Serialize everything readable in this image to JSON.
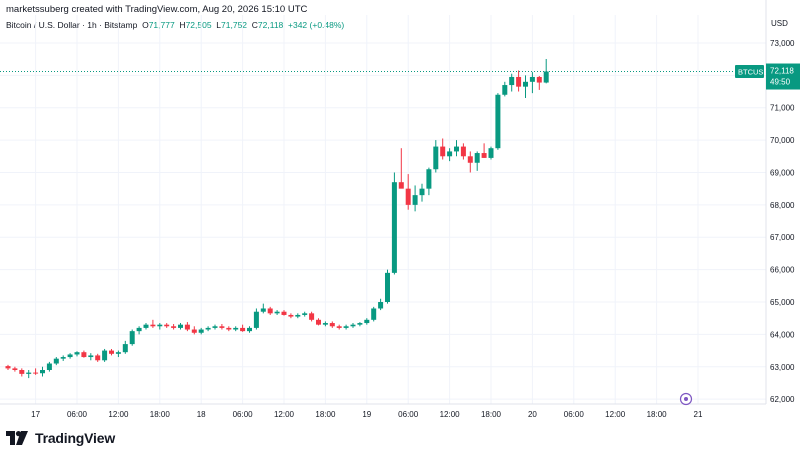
{
  "header": {
    "credit": "marketssuberg created with TradingView.com, Aug 20, 2026 15:10 UTC",
    "symbol_desc": "Bitcoin / U.S. Dollar · 1h · Bitstamp",
    "o_label": "O",
    "o_value": "71,777",
    "h_label": "H",
    "h_value": "72,505",
    "l_label": "L",
    "l_value": "71,752",
    "c_label": "C",
    "c_value": "72,118",
    "change": "+342 (+0.48%)"
  },
  "footer": {
    "brand": "TradingView",
    "logo": "tradingview-logo-icon"
  },
  "colors": {
    "up": "#089981",
    "down": "#f23645",
    "grid": "#f0f3fa",
    "axis_text": "#131722",
    "price_line": "#089981"
  },
  "chart_data": {
    "type": "candlestick",
    "symbol": "BTCUSD",
    "currency_label": "USD",
    "last_price_label": "72,118",
    "countdown_label": "49:50",
    "ylim": [
      61850,
      73400
    ],
    "y_ticks": [
      {
        "value": 73000,
        "label": "73,000"
      },
      {
        "value": 72000,
        "label": "72,000"
      },
      {
        "value": 71000,
        "label": "71,000"
      },
      {
        "value": 70000,
        "label": "70,000"
      },
      {
        "value": 69000,
        "label": "69,000"
      },
      {
        "value": 68000,
        "label": "68,000"
      },
      {
        "value": 67000,
        "label": "67,000"
      },
      {
        "value": 66000,
        "label": "66,000"
      },
      {
        "value": 65000,
        "label": "65,000"
      },
      {
        "value": 64000,
        "label": "64,000"
      },
      {
        "value": 63000,
        "label": "63,000"
      },
      {
        "value": 62000,
        "label": "62,000"
      }
    ],
    "x_ticks": [
      {
        "index": 4,
        "label": "17"
      },
      {
        "index": 10,
        "label": "06:00"
      },
      {
        "index": 16,
        "label": "12:00"
      },
      {
        "index": 22,
        "label": "18:00"
      },
      {
        "index": 28,
        "label": "18"
      },
      {
        "index": 34,
        "label": "06:00"
      },
      {
        "index": 40,
        "label": "12:00"
      },
      {
        "index": 46,
        "label": "18:00"
      },
      {
        "index": 52,
        "label": "19"
      },
      {
        "index": 58,
        "label": "06:00"
      },
      {
        "index": 64,
        "label": "12:00"
      },
      {
        "index": 70,
        "label": "18:00"
      },
      {
        "index": 76,
        "label": "20"
      },
      {
        "index": 82,
        "label": "06:00"
      },
      {
        "index": 88,
        "label": "12:00"
      },
      {
        "index": 94,
        "label": "18:00"
      },
      {
        "index": 100,
        "label": "21"
      }
    ],
    "last_price": 72118,
    "candles": [
      [
        63020,
        63060,
        62900,
        62950
      ],
      [
        62950,
        63000,
        62850,
        62900
      ],
      [
        62900,
        62950,
        62700,
        62780
      ],
      [
        62780,
        62900,
        62650,
        62820
      ],
      [
        62820,
        62950,
        62750,
        62800
      ],
      [
        62800,
        63000,
        62700,
        62900
      ],
      [
        62900,
        63150,
        62850,
        63100
      ],
      [
        63100,
        63300,
        63050,
        63250
      ],
      [
        63250,
        63350,
        63180,
        63300
      ],
      [
        63300,
        63420,
        63250,
        63380
      ],
      [
        63380,
        63480,
        63320,
        63450
      ],
      [
        63450,
        63500,
        63280,
        63300
      ],
      [
        63300,
        63420,
        63200,
        63350
      ],
      [
        63350,
        63400,
        63150,
        63200
      ],
      [
        63200,
        63550,
        63150,
        63500
      ],
      [
        63500,
        63550,
        63350,
        63400
      ],
      [
        63400,
        63500,
        63300,
        63450
      ],
      [
        63450,
        63800,
        63400,
        63700
      ],
      [
        63700,
        64150,
        63650,
        64100
      ],
      [
        64100,
        64250,
        64000,
        64200
      ],
      [
        64200,
        64350,
        64150,
        64300
      ],
      [
        64300,
        64450,
        64200,
        64250
      ],
      [
        64250,
        64350,
        64150,
        64300
      ],
      [
        64300,
        64350,
        64200,
        64250
      ],
      [
        64250,
        64320,
        64150,
        64200
      ],
      [
        64200,
        64350,
        64150,
        64300
      ],
      [
        64300,
        64380,
        64100,
        64150
      ],
      [
        64150,
        64250,
        64000,
        64050
      ],
      [
        64050,
        64200,
        64000,
        64150
      ],
      [
        64150,
        64250,
        64100,
        64200
      ],
      [
        64200,
        64300,
        64150,
        64250
      ],
      [
        64250,
        64320,
        64150,
        64200
      ],
      [
        64200,
        64250,
        64100,
        64150
      ],
      [
        64150,
        64250,
        64100,
        64200
      ],
      [
        64200,
        64300,
        64080,
        64100
      ],
      [
        64100,
        64250,
        64050,
        64200
      ],
      [
        64200,
        64800,
        64150,
        64700
      ],
      [
        64700,
        64950,
        64650,
        64800
      ],
      [
        64800,
        64850,
        64600,
        64650
      ],
      [
        64650,
        64750,
        64600,
        64700
      ],
      [
        64700,
        64750,
        64580,
        64600
      ],
      [
        64600,
        64650,
        64500,
        64550
      ],
      [
        64550,
        64650,
        64500,
        64600
      ],
      [
        64600,
        64700,
        64550,
        64650
      ],
      [
        64650,
        64700,
        64400,
        64450
      ],
      [
        64450,
        64500,
        64280,
        64300
      ],
      [
        64300,
        64400,
        64250,
        64350
      ],
      [
        64350,
        64400,
        64200,
        64250
      ],
      [
        64250,
        64300,
        64150,
        64200
      ],
      [
        64200,
        64300,
        64150,
        64250
      ],
      [
        64250,
        64350,
        64200,
        64300
      ],
      [
        64300,
        64380,
        64250,
        64350
      ],
      [
        64350,
        64500,
        64300,
        64450
      ],
      [
        64450,
        64850,
        64400,
        64800
      ],
      [
        64800,
        65100,
        64750,
        65000
      ],
      [
        65000,
        66000,
        64950,
        65900
      ],
      [
        65900,
        69000,
        65850,
        68700
      ],
      [
        68700,
        69750,
        68550,
        68500
      ],
      [
        68500,
        68950,
        67850,
        68000
      ],
      [
        68000,
        68600,
        67800,
        68300
      ],
      [
        68300,
        68650,
        68100,
        68500
      ],
      [
        68500,
        69150,
        68300,
        69100
      ],
      [
        69100,
        70000,
        69000,
        69800
      ],
      [
        69800,
        70050,
        69400,
        69500
      ],
      [
        69500,
        69750,
        69350,
        69650
      ],
      [
        69650,
        70000,
        69500,
        69800
      ],
      [
        69800,
        69900,
        69400,
        69500
      ],
      [
        69500,
        69650,
        69000,
        69300
      ],
      [
        69300,
        69650,
        69050,
        69600
      ],
      [
        69600,
        69900,
        69450,
        69450
      ],
      [
        69450,
        69800,
        69400,
        69750
      ],
      [
        69750,
        71450,
        69700,
        71400
      ],
      [
        71400,
        71800,
        71350,
        71700
      ],
      [
        71700,
        72050,
        71500,
        71950
      ],
      [
        71950,
        72150,
        71500,
        71650
      ],
      [
        71650,
        72000,
        71300,
        71800
      ],
      [
        71800,
        72100,
        71450,
        71950
      ],
      [
        71950,
        71980,
        71550,
        71777
      ],
      [
        71777,
        72505,
        71752,
        72118
      ]
    ]
  }
}
